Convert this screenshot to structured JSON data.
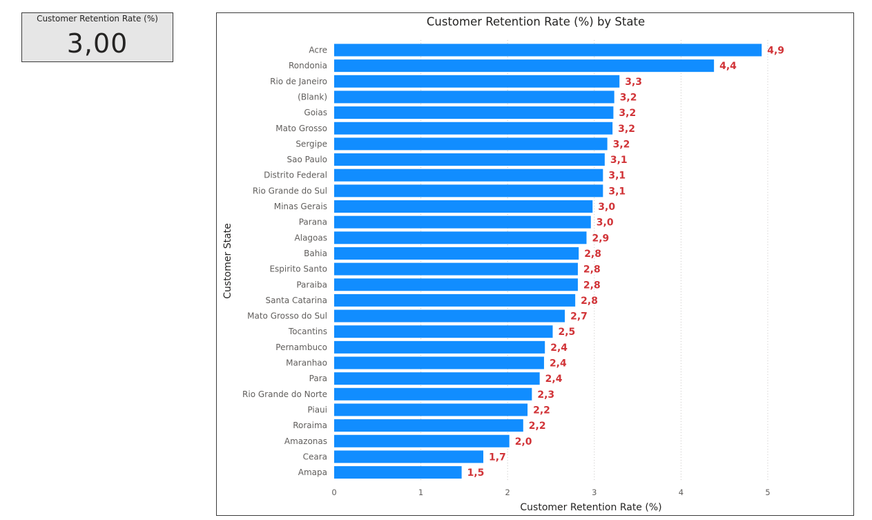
{
  "card": {
    "title": "Customer Retention Rate (%)",
    "value": "3,00"
  },
  "chart_data": {
    "type": "bar",
    "orientation": "horizontal",
    "title": "Customer Retention Rate (%) by State",
    "xlabel": "Customer Retention Rate (%)",
    "ylabel": "Customer State",
    "xlim": [
      0,
      5
    ],
    "xticks": [
      "0",
      "1",
      "2",
      "3",
      "4",
      "5"
    ],
    "grid": "vertical dotted",
    "bar_color": "#118dff",
    "label_color": "#d13438",
    "categories": [
      "Acre",
      "Rondonia",
      "Rio de Janeiro",
      "(Blank)",
      "Goias",
      "Mato Grosso",
      "Sergipe",
      "Sao Paulo",
      "Distrito Federal",
      "Rio Grande do Sul",
      "Minas Gerais",
      "Parana",
      "Alagoas",
      "Bahia",
      "Espirito Santo",
      "Paraiba",
      "Santa Catarina",
      "Mato Grosso do Sul",
      "Tocantins",
      "Pernambuco",
      "Maranhao",
      "Para",
      "Rio Grande do Norte",
      "Piaui",
      "Roraima",
      "Amazonas",
      "Ceara",
      "Amapa"
    ],
    "values": [
      4.93,
      4.38,
      3.29,
      3.23,
      3.22,
      3.21,
      3.15,
      3.12,
      3.1,
      3.1,
      2.98,
      2.96,
      2.91,
      2.82,
      2.81,
      2.81,
      2.78,
      2.66,
      2.52,
      2.43,
      2.42,
      2.37,
      2.28,
      2.23,
      2.18,
      2.02,
      1.72,
      1.47
    ],
    "data_labels": [
      "4,9",
      "4,4",
      "3,3",
      "3,2",
      "3,2",
      "3,2",
      "3,2",
      "3,1",
      "3,1",
      "3,1",
      "3,0",
      "3,0",
      "2,9",
      "2,8",
      "2,8",
      "2,8",
      "2,8",
      "2,7",
      "2,5",
      "2,4",
      "2,4",
      "2,4",
      "2,3",
      "2,2",
      "2,2",
      "2,0",
      "1,7",
      "1,5"
    ]
  }
}
